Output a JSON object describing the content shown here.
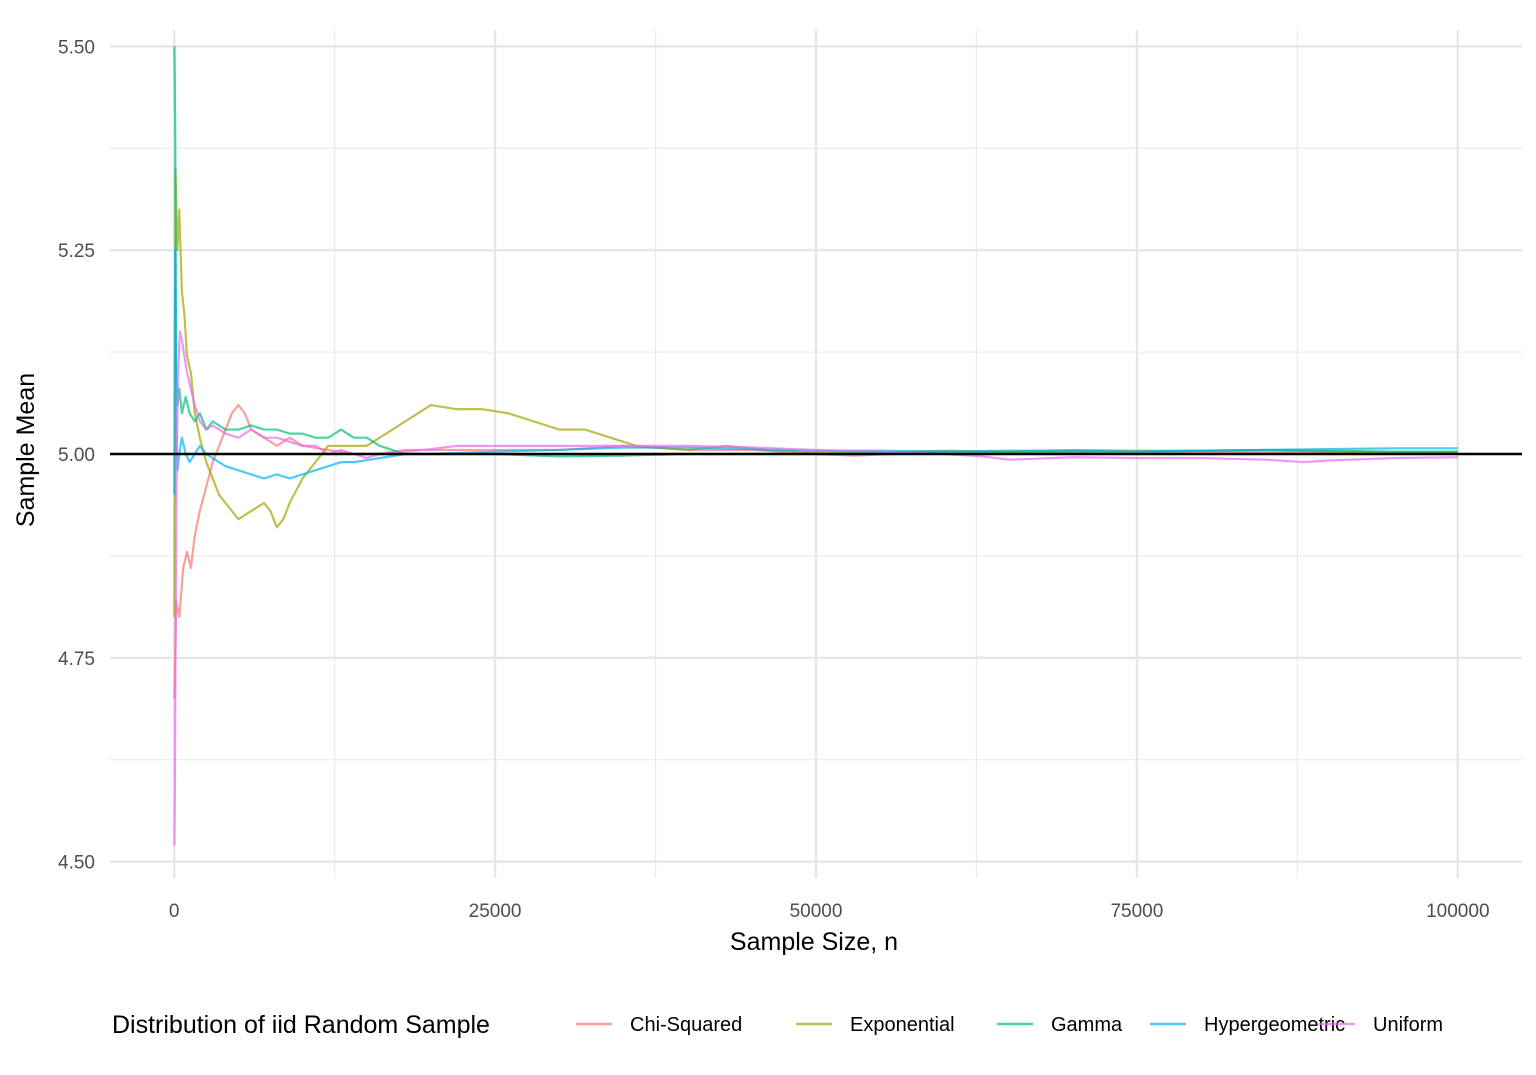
{
  "chart_data": {
    "type": "line",
    "title": "",
    "xlabel": "Sample Size, n",
    "ylabel": "Sample Mean",
    "xlim": [
      -5000,
      105000
    ],
    "ylim": [
      4.48,
      5.52
    ],
    "x_ticks": [
      0,
      25000,
      50000,
      75000,
      100000
    ],
    "x_tick_labels": [
      "0",
      "25000",
      "50000",
      "75000",
      "100000"
    ],
    "y_ticks": [
      4.5,
      4.75,
      5.0,
      5.25,
      5.5
    ],
    "y_tick_labels": [
      "4.50",
      "4.75",
      "5.00",
      "5.25",
      "5.50"
    ],
    "grid": true,
    "reference_line": {
      "y": 5.0,
      "color": "#000000"
    },
    "legend": {
      "title": "Distribution of iid Random Sample",
      "position": "bottom"
    },
    "series": [
      {
        "name": "Chi-Squared",
        "color": "#F8766D",
        "points": [
          [
            20,
            4.7
          ],
          [
            150,
            4.82
          ],
          [
            400,
            4.8
          ],
          [
            700,
            4.86
          ],
          [
            1000,
            4.88
          ],
          [
            1300,
            4.86
          ],
          [
            1600,
            4.9
          ],
          [
            2000,
            4.93
          ],
          [
            2500,
            4.96
          ],
          [
            3000,
            4.99
          ],
          [
            3500,
            5.01
          ],
          [
            4000,
            5.03
          ],
          [
            4500,
            5.05
          ],
          [
            5000,
            5.06
          ],
          [
            5500,
            5.05
          ],
          [
            6000,
            5.03
          ],
          [
            7000,
            5.02
          ],
          [
            8000,
            5.01
          ],
          [
            9000,
            5.02
          ],
          [
            10000,
            5.01
          ],
          [
            12000,
            5.005
          ],
          [
            14000,
            5.0
          ],
          [
            16000,
            5.0
          ],
          [
            18000,
            5.005
          ],
          [
            20000,
            5.005
          ],
          [
            25000,
            5.005
          ],
          [
            30000,
            5.005
          ],
          [
            35000,
            5.01
          ],
          [
            40000,
            5.005
          ],
          [
            45000,
            5.005
          ],
          [
            50000,
            5.0
          ],
          [
            53000,
            4.998
          ],
          [
            60000,
            5.003
          ],
          [
            70000,
            5.002
          ],
          [
            80000,
            5.002
          ],
          [
            90000,
            5.002
          ],
          [
            100000,
            5.002
          ]
        ]
      },
      {
        "name": "Exponential",
        "color": "#A3A500",
        "points": [
          [
            20,
            4.8
          ],
          [
            100,
            5.35
          ],
          [
            250,
            5.25
          ],
          [
            400,
            5.3
          ],
          [
            600,
            5.2
          ],
          [
            800,
            5.17
          ],
          [
            1000,
            5.12
          ],
          [
            1300,
            5.1
          ],
          [
            1600,
            5.05
          ],
          [
            2000,
            5.02
          ],
          [
            2500,
            4.99
          ],
          [
            3000,
            4.97
          ],
          [
            3500,
            4.95
          ],
          [
            4000,
            4.94
          ],
          [
            4500,
            4.93
          ],
          [
            5000,
            4.92
          ],
          [
            6000,
            4.93
          ],
          [
            7000,
            4.94
          ],
          [
            7500,
            4.93
          ],
          [
            8000,
            4.91
          ],
          [
            8500,
            4.92
          ],
          [
            9000,
            4.94
          ],
          [
            10000,
            4.97
          ],
          [
            11000,
            4.99
          ],
          [
            12000,
            5.01
          ],
          [
            13000,
            5.01
          ],
          [
            15000,
            5.01
          ],
          [
            16000,
            5.02
          ],
          [
            17000,
            5.03
          ],
          [
            18000,
            5.04
          ],
          [
            19000,
            5.05
          ],
          [
            20000,
            5.06
          ],
          [
            22000,
            5.055
          ],
          [
            24000,
            5.055
          ],
          [
            26000,
            5.05
          ],
          [
            28000,
            5.04
          ],
          [
            30000,
            5.03
          ],
          [
            32000,
            5.03
          ],
          [
            34000,
            5.02
          ],
          [
            36000,
            5.01
          ],
          [
            40000,
            5.005
          ],
          [
            43000,
            5.01
          ],
          [
            46000,
            5.005
          ],
          [
            50000,
            5.002
          ],
          [
            55000,
            5.002
          ],
          [
            60000,
            5.004
          ],
          [
            65000,
            5.003
          ],
          [
            70000,
            5.005
          ],
          [
            75000,
            5.004
          ],
          [
            80000,
            5.004
          ],
          [
            85000,
            5.005
          ],
          [
            90000,
            5.003
          ],
          [
            95000,
            5.002
          ],
          [
            100000,
            5.002
          ]
        ]
      },
      {
        "name": "Gamma",
        "color": "#00BF7D",
        "points": [
          [
            20,
            5.5
          ],
          [
            80,
            5.4
          ],
          [
            150,
            5.1
          ],
          [
            250,
            5.06
          ],
          [
            400,
            5.08
          ],
          [
            600,
            5.05
          ],
          [
            900,
            5.07
          ],
          [
            1200,
            5.05
          ],
          [
            1600,
            5.04
          ],
          [
            2000,
            5.05
          ],
          [
            2500,
            5.03
          ],
          [
            3000,
            5.04
          ],
          [
            4000,
            5.03
          ],
          [
            5000,
            5.03
          ],
          [
            6000,
            5.035
          ],
          [
            7000,
            5.03
          ],
          [
            8000,
            5.03
          ],
          [
            9000,
            5.025
          ],
          [
            10000,
            5.025
          ],
          [
            11000,
            5.02
          ],
          [
            12000,
            5.02
          ],
          [
            13000,
            5.03
          ],
          [
            14000,
            5.02
          ],
          [
            15000,
            5.02
          ],
          [
            16000,
            5.01
          ],
          [
            17000,
            5.005
          ],
          [
            18000,
            5.0
          ],
          [
            20000,
            5.0
          ],
          [
            25000,
            5.0
          ],
          [
            30000,
            4.997
          ],
          [
            35000,
            4.998
          ],
          [
            40000,
            5.0
          ],
          [
            45000,
            5.0
          ],
          [
            50000,
            5.0
          ],
          [
            55000,
            5.002
          ],
          [
            60000,
            5.003
          ],
          [
            65000,
            5.002
          ],
          [
            70000,
            5.003
          ],
          [
            75000,
            5.003
          ],
          [
            80000,
            5.004
          ],
          [
            85000,
            5.005
          ],
          [
            90000,
            5.004
          ],
          [
            95000,
            5.003
          ],
          [
            100000,
            5.003
          ]
        ]
      },
      {
        "name": "Hypergeometric",
        "color": "#00B0F6",
        "points": [
          [
            20,
            4.95
          ],
          [
            80,
            5.25
          ],
          [
            150,
            5.05
          ],
          [
            250,
            4.98
          ],
          [
            400,
            5.0
          ],
          [
            600,
            5.02
          ],
          [
            900,
            5.0
          ],
          [
            1200,
            4.99
          ],
          [
            1600,
            5.0
          ],
          [
            2000,
            5.01
          ],
          [
            2500,
            5.0
          ],
          [
            3000,
            4.995
          ],
          [
            3500,
            4.99
          ],
          [
            4000,
            4.985
          ],
          [
            5000,
            4.98
          ],
          [
            6000,
            4.975
          ],
          [
            7000,
            4.97
          ],
          [
            8000,
            4.975
          ],
          [
            9000,
            4.97
          ],
          [
            10000,
            4.975
          ],
          [
            11000,
            4.98
          ],
          [
            12000,
            4.985
          ],
          [
            13000,
            4.99
          ],
          [
            14000,
            4.99
          ],
          [
            16000,
            4.995
          ],
          [
            18000,
            5.0
          ],
          [
            20000,
            5.0
          ],
          [
            25000,
            5.003
          ],
          [
            30000,
            5.005
          ],
          [
            35000,
            5.008
          ],
          [
            40000,
            5.008
          ],
          [
            45000,
            5.006
          ],
          [
            50000,
            5.004
          ],
          [
            55000,
            5.004
          ],
          [
            60000,
            5.003
          ],
          [
            65000,
            5.004
          ],
          [
            70000,
            5.004
          ],
          [
            75000,
            5.003
          ],
          [
            80000,
            5.004
          ],
          [
            85000,
            5.005
          ],
          [
            90000,
            5.006
          ],
          [
            95000,
            5.007
          ],
          [
            100000,
            5.007
          ]
        ]
      },
      {
        "name": "Uniform",
        "color": "#E76BF3",
        "points": [
          [
            20,
            4.52
          ],
          [
            60,
            4.6
          ],
          [
            100,
            4.75
          ],
          [
            200,
            5.0
          ],
          [
            300,
            5.1
          ],
          [
            450,
            5.15
          ],
          [
            600,
            5.14
          ],
          [
            800,
            5.12
          ],
          [
            1000,
            5.1
          ],
          [
            1300,
            5.08
          ],
          [
            1600,
            5.06
          ],
          [
            2000,
            5.04
          ],
          [
            2500,
            5.03
          ],
          [
            3000,
            5.035
          ],
          [
            3500,
            5.03
          ],
          [
            4000,
            5.025
          ],
          [
            5000,
            5.02
          ],
          [
            6000,
            5.03
          ],
          [
            7000,
            5.02
          ],
          [
            8000,
            5.02
          ],
          [
            9000,
            5.015
          ],
          [
            10000,
            5.01
          ],
          [
            11000,
            5.01
          ],
          [
            12000,
            5.0
          ],
          [
            13000,
            5.005
          ],
          [
            14000,
            5.0
          ],
          [
            15000,
            4.995
          ],
          [
            16000,
            5.0
          ],
          [
            18000,
            5.003
          ],
          [
            20000,
            5.006
          ],
          [
            22000,
            5.01
          ],
          [
            25000,
            5.01
          ],
          [
            30000,
            5.01
          ],
          [
            35000,
            5.01
          ],
          [
            40000,
            5.01
          ],
          [
            45000,
            5.008
          ],
          [
            50000,
            5.005
          ],
          [
            55000,
            5.003
          ],
          [
            60000,
            5.0
          ],
          [
            63000,
            4.997
          ],
          [
            65000,
            4.993
          ],
          [
            70000,
            4.996
          ],
          [
            75000,
            4.995
          ],
          [
            80000,
            4.995
          ],
          [
            85000,
            4.993
          ],
          [
            88000,
            4.99
          ],
          [
            90000,
            4.992
          ],
          [
            95000,
            4.995
          ],
          [
            100000,
            4.996
          ]
        ]
      }
    ]
  }
}
